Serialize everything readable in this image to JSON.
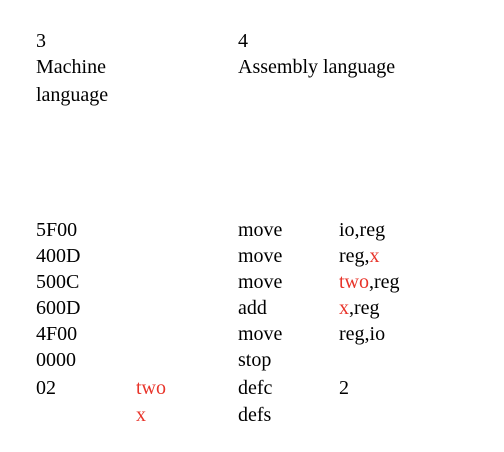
{
  "header": {
    "col1_number": "3",
    "col1_label_line1": "Machine",
    "col1_label_line2": "language",
    "col2_number": "4",
    "col2_label": "Assembly language"
  },
  "rows": [
    {
      "code": "5F00",
      "label": "",
      "op": "move",
      "arg_a": "io,reg",
      "arg_b": ""
    },
    {
      "code": "400D",
      "label": "",
      "op": "move",
      "arg_a": "reg,",
      "arg_b": "x"
    },
    {
      "code": "500C",
      "label": "",
      "op": "move",
      "arg_a": "two",
      "arg_b": ",reg"
    },
    {
      "code": "600D",
      "label": "",
      "op": "add",
      "arg_a": "x",
      "arg_b": ",reg"
    },
    {
      "code": "4F00",
      "label": "",
      "op": "move",
      "arg_a": "reg,io",
      "arg_b": ""
    },
    {
      "code": "0000",
      "label": "",
      "op": "stop",
      "arg_a": "",
      "arg_b": ""
    },
    {
      "code": "02",
      "label": "two",
      "op": "defc",
      "arg_a": "2",
      "arg_b": ""
    },
    {
      "code": "",
      "label": "x",
      "op": "defs",
      "arg_a": "",
      "arg_b": ""
    }
  ],
  "colors": {
    "highlight": "#e8342a",
    "text": "#000000"
  }
}
